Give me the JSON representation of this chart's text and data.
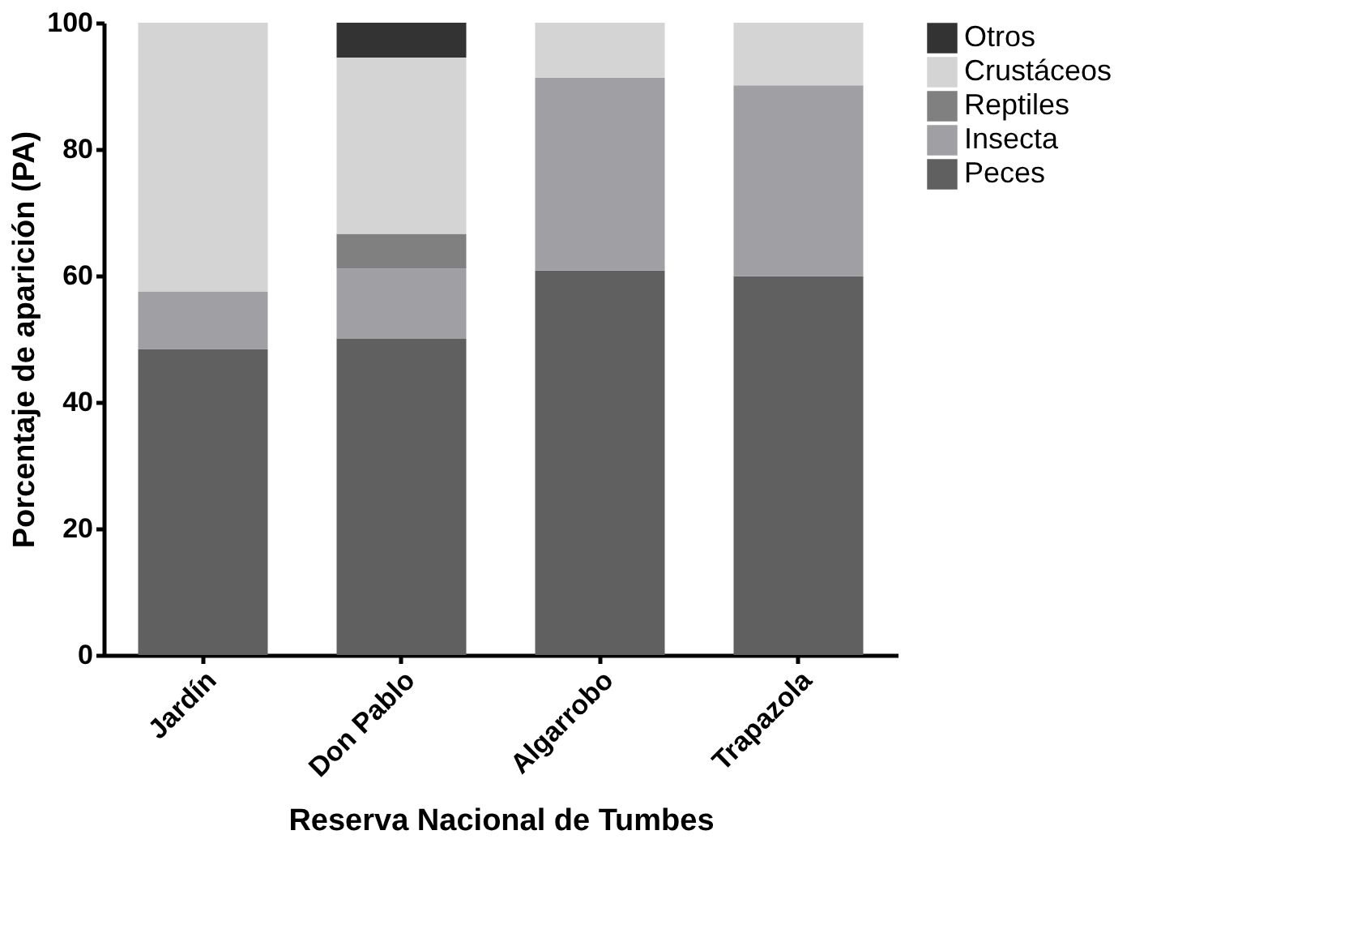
{
  "chart_data": {
    "type": "bar",
    "stacked": true,
    "xlabel": "Reserva Nacional de Tumbes",
    "ylabel": "Porcentaje de aparición (PA)",
    "categories": [
      "Jardín",
      "Don Pablo",
      "Algarrobo",
      "Trapazola"
    ],
    "series": [
      {
        "name": "Peces",
        "color": "#606060",
        "values": [
          48.4,
          50,
          60.8,
          59.9
        ]
      },
      {
        "name": "Insecta",
        "color": "#a0a0a4",
        "values": [
          9.1,
          11.1,
          30.5,
          30.2
        ]
      },
      {
        "name": "Reptiles",
        "color": "#808080",
        "values": [
          0,
          5.5,
          0,
          0
        ]
      },
      {
        "name": "Crustáceos",
        "color": "#d4d4d4",
        "values": [
          42.5,
          27.9,
          8.7,
          9.9
        ]
      },
      {
        "name": "Otros",
        "color": "#333333",
        "values": [
          0,
          5.5,
          0,
          0
        ]
      }
    ],
    "ylim": [
      0,
      100
    ],
    "yticks": [
      0,
      20,
      40,
      60,
      80,
      100
    ],
    "grid": false,
    "legend": "right"
  }
}
